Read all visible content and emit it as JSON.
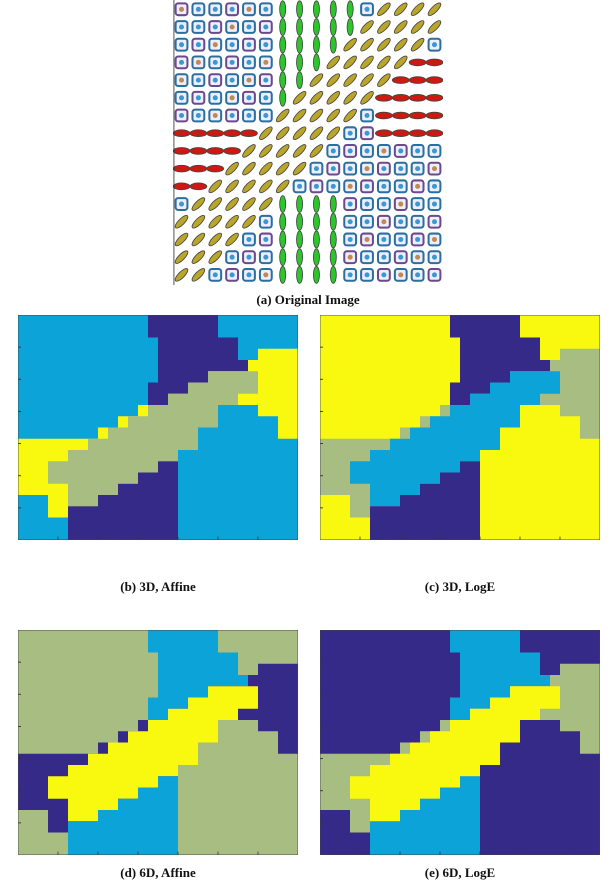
{
  "figure": {
    "subfigures": [
      {
        "label": "(a)",
        "caption": "Original Image"
      },
      {
        "label": "(b)",
        "caption": "3D, Affine"
      },
      {
        "label": "(c)",
        "caption": "3D, LogE"
      },
      {
        "label": "(d)",
        "caption": "6D, Affine"
      },
      {
        "label": "(e)",
        "caption": "6D, LogE"
      }
    ]
  }
}
